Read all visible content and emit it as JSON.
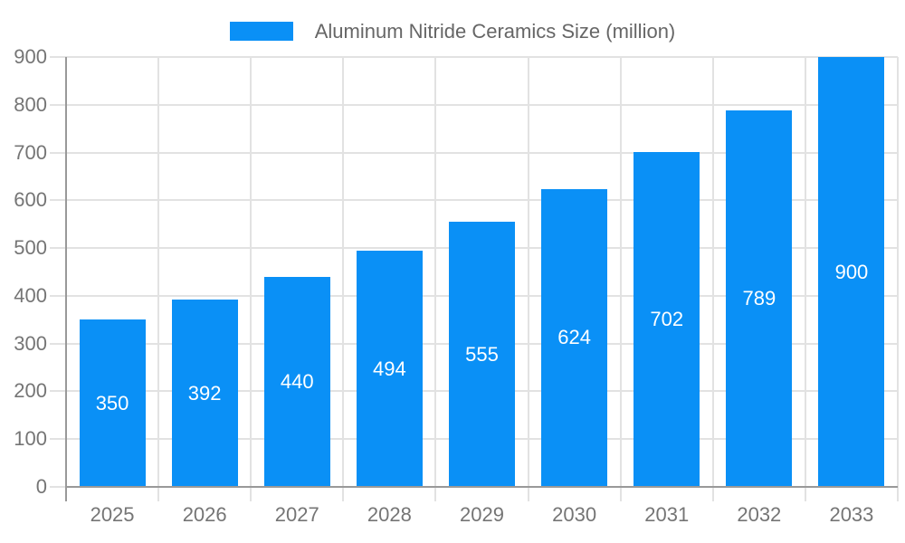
{
  "legend": {
    "label": "Aluminum Nitride Ceramics Size (million)"
  },
  "chart_data": {
    "type": "bar",
    "title": "Aluminum Nitride Ceramics Size (million)",
    "series_name": "Aluminum Nitride Ceramics Size (million)",
    "categories": [
      "2025",
      "2026",
      "2027",
      "2028",
      "2029",
      "2030",
      "2031",
      "2032",
      "2033"
    ],
    "values": [
      350,
      392,
      440,
      494,
      555,
      624,
      702,
      789,
      900
    ],
    "value_labels": [
      "350",
      "392",
      "440",
      "494",
      "555",
      "624",
      "702",
      "789",
      "900"
    ],
    "xlabel": "",
    "ylabel": "",
    "ylim": [
      0,
      900
    ],
    "yticks": [
      0,
      100,
      200,
      300,
      400,
      500,
      600,
      700,
      800,
      900
    ],
    "grid": true,
    "legend_position": "top-center",
    "colors": {
      "bar": "#0a90f6",
      "bar_value_label": "#ffffff",
      "axis_label": "#757575",
      "legend_text": "#666666",
      "gridline": "#e2e2e2",
      "axis_line": "#999999",
      "background": "#ffffff"
    }
  }
}
